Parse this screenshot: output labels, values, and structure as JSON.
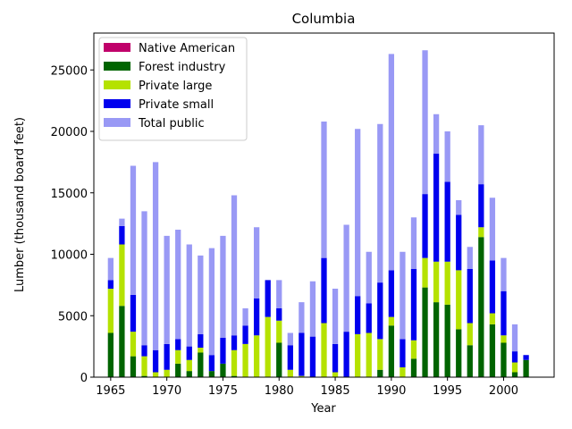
{
  "chart_data": {
    "type": "bar",
    "stacked": true,
    "title": "Columbia",
    "xlabel": "Year",
    "ylabel": "Lumber (thousand board feet)",
    "xlim": [
      1963.5,
      2004.5
    ],
    "ylim": [
      0,
      28000
    ],
    "xticks": [
      1965,
      1970,
      1975,
      1980,
      1985,
      1990,
      1995,
      2000
    ],
    "yticks": [
      0,
      5000,
      10000,
      15000,
      20000,
      25000
    ],
    "grid": false,
    "legend_position": "top-left",
    "x": [
      1965,
      1966,
      1967,
      1968,
      1969,
      1970,
      1971,
      1972,
      1973,
      1974,
      1975,
      1976,
      1977,
      1978,
      1979,
      1980,
      1981,
      1982,
      1983,
      1984,
      1985,
      1986,
      1987,
      1988,
      1989,
      1990,
      1991,
      1992,
      1993,
      1994,
      1995,
      1996,
      1997,
      1998,
      1999,
      2000,
      2001,
      2002
    ],
    "series": [
      {
        "name": "Native American",
        "color": "#c0006a",
        "values": [
          0,
          0,
          0,
          0,
          0,
          0,
          0,
          0,
          0,
          0,
          0,
          0,
          0,
          0,
          0,
          0,
          0,
          0,
          0,
          0,
          0,
          0,
          0,
          0,
          0,
          0,
          0,
          0,
          0,
          0,
          0,
          0,
          0,
          0,
          0,
          0,
          0,
          0
        ]
      },
      {
        "name": "Forest industry",
        "color": "#006400",
        "values": [
          3600,
          5800,
          1700,
          100,
          0,
          0,
          1100,
          500,
          2000,
          500,
          1100,
          100,
          0,
          0,
          0,
          2800,
          0,
          0,
          0,
          0,
          0,
          0,
          0,
          0,
          600,
          4200,
          0,
          1500,
          7300,
          6100,
          5900,
          3900,
          2600,
          11400,
          4300,
          2800,
          400,
          1400
        ]
      },
      {
        "name": "Private large",
        "color": "#b5e200",
        "values": [
          3600,
          5000,
          2000,
          1600,
          400,
          600,
          1100,
          900,
          400,
          0,
          0,
          2100,
          2700,
          3400,
          4900,
          1800,
          600,
          100,
          0,
          4400,
          400,
          0,
          3500,
          3600,
          2500,
          700,
          800,
          1500,
          2400,
          3300,
          3500,
          4800,
          1800,
          800,
          900,
          600,
          800,
          0
        ]
      },
      {
        "name": "Private small",
        "color": "#0000ee",
        "values": [
          700,
          1500,
          3000,
          900,
          1800,
          2100,
          900,
          1100,
          1100,
          1300,
          2100,
          1200,
          1500,
          3000,
          3000,
          1000,
          2000,
          3500,
          3300,
          5300,
          2300,
          3700,
          3100,
          2400,
          4600,
          3800,
          2300,
          5800,
          5200,
          8800,
          6500,
          4500,
          4400,
          3500,
          4300,
          3600,
          900,
          400
        ]
      },
      {
        "name": "Total public",
        "color": "#9999f5",
        "values": [
          1800,
          600,
          10500,
          10900,
          15300,
          8800,
          8900,
          8300,
          6400,
          8700,
          8300,
          11400,
          1400,
          5800,
          0,
          2300,
          1000,
          2500,
          4500,
          11100,
          4500,
          8700,
          13600,
          4200,
          12900,
          17600,
          7100,
          4200,
          11700,
          3200,
          4100,
          1200,
          1800,
          4800,
          5100,
          2700,
          2200,
          0
        ]
      }
    ]
  }
}
